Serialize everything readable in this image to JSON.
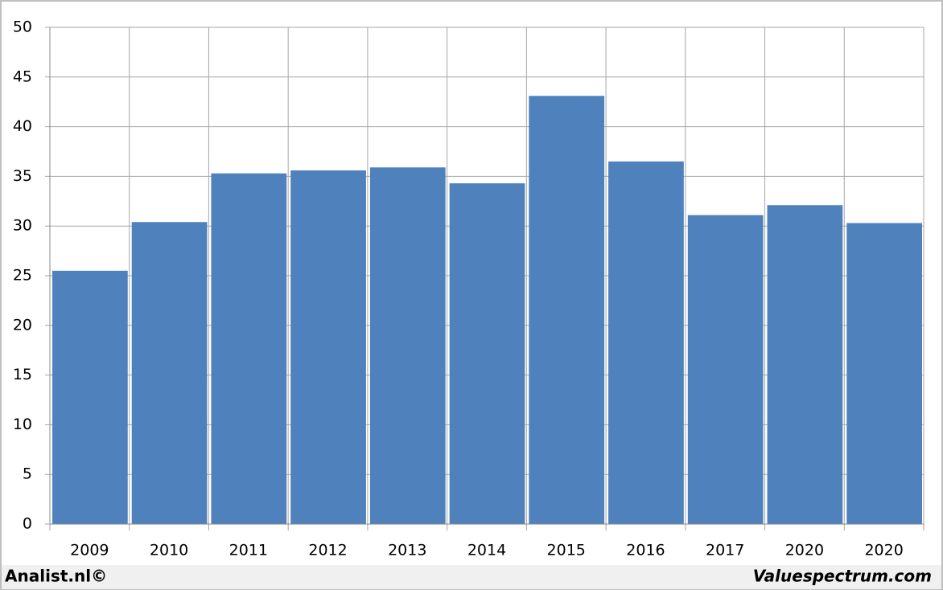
{
  "chart_data": {
    "type": "bar",
    "categories": [
      "2009",
      "2010",
      "2011",
      "2012",
      "2013",
      "2014",
      "2015",
      "2016",
      "2017",
      "2020",
      "2020"
    ],
    "values": [
      25.5,
      30.4,
      35.3,
      35.6,
      35.9,
      34.3,
      43.1,
      36.5,
      31.1,
      32.1,
      30.3
    ],
    "color": "#4f81bd",
    "ylim": [
      0,
      50
    ],
    "yticks": [
      0,
      5,
      10,
      15,
      20,
      25,
      30,
      35,
      40,
      45,
      50
    ],
    "grid": true
  },
  "footer": {
    "left": "Analist.nl©",
    "right": "Valuespectrum.com"
  }
}
